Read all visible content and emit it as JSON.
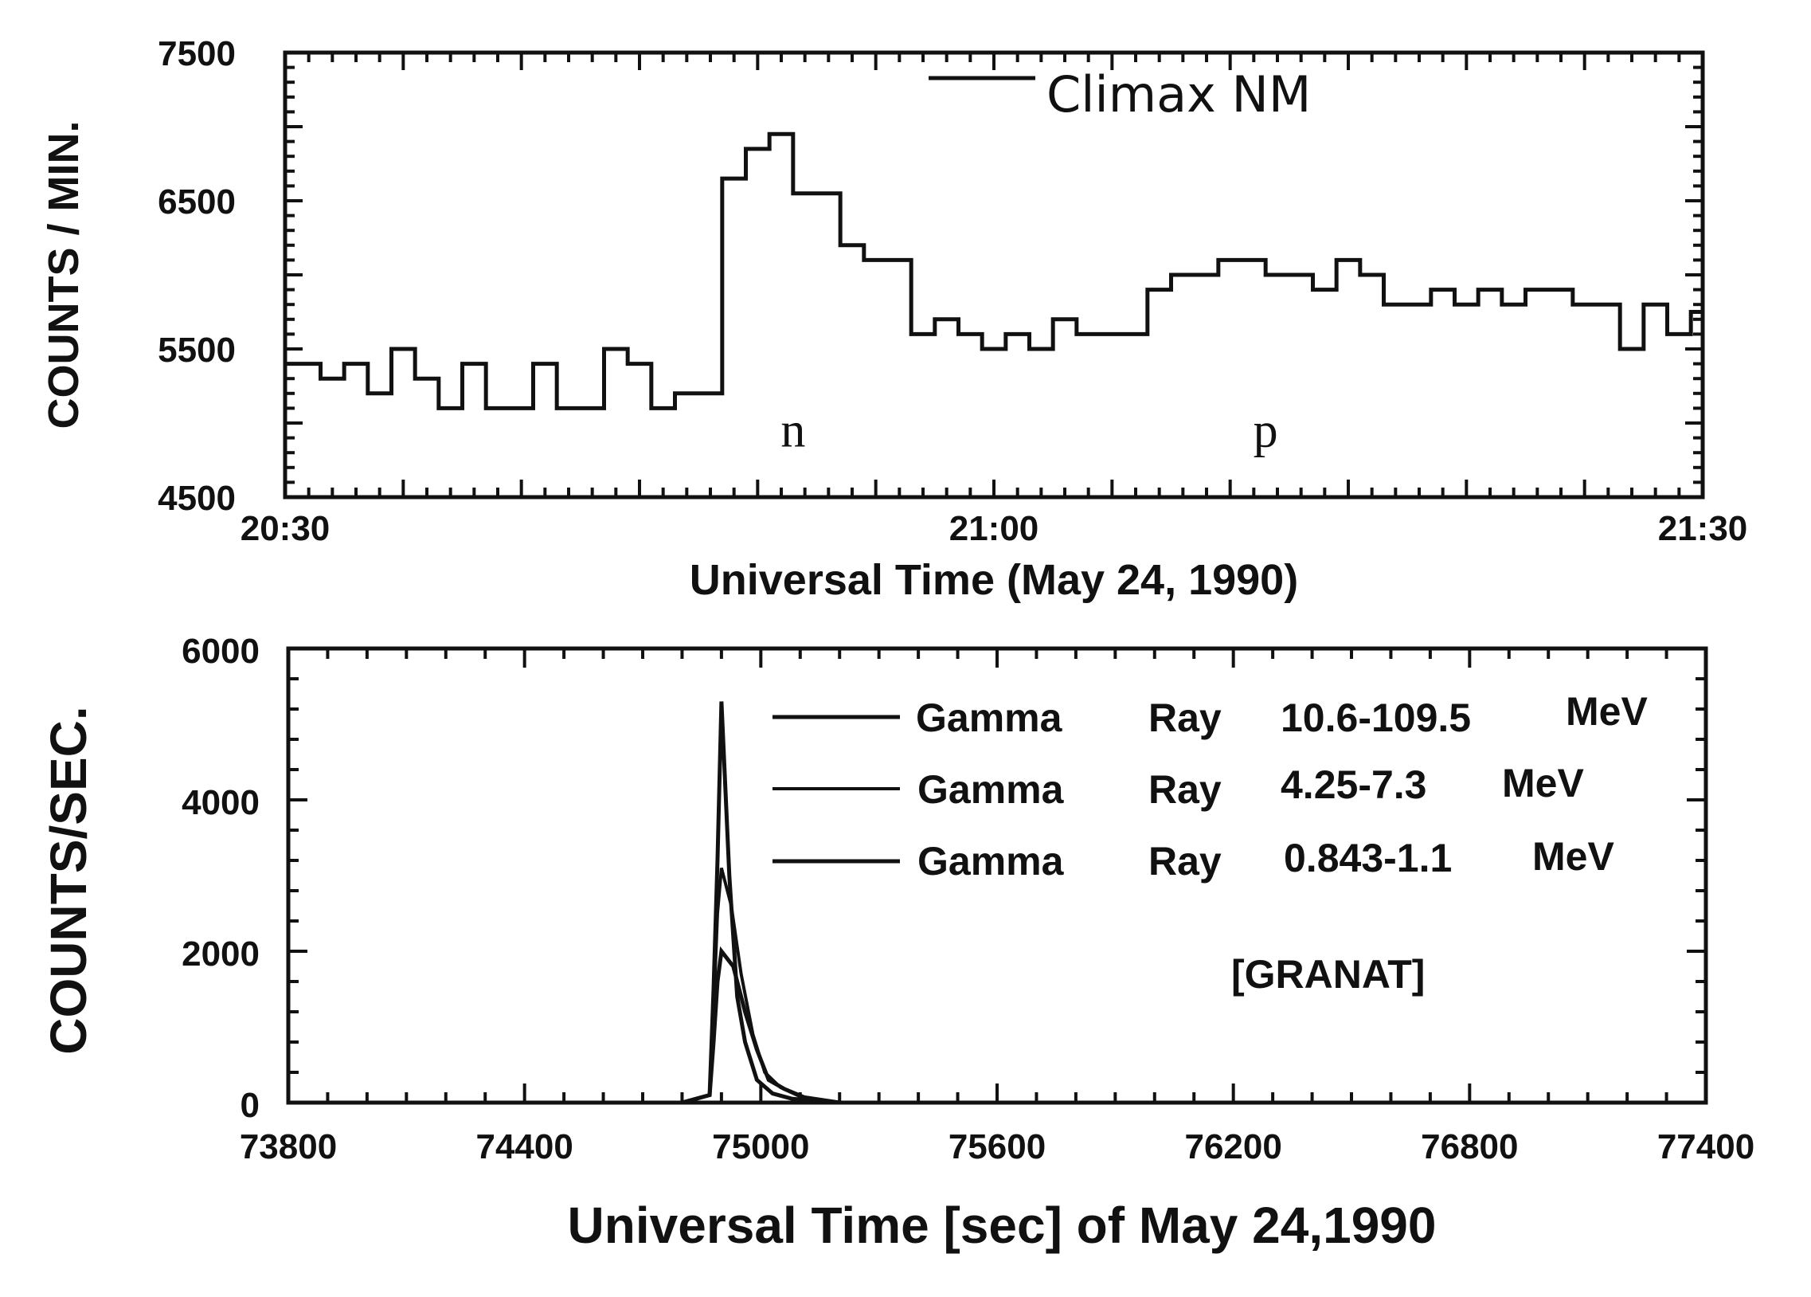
{
  "chart_data": [
    {
      "type": "line",
      "step": true,
      "ylabel": "COUNTS / MIN.",
      "xlabel": "Universal Time (May 24, 1990)",
      "xlim_minutes_after_2030": [
        0,
        60
      ],
      "ylim": [
        4500,
        7500
      ],
      "y_ticks": [
        "7500",
        "6500",
        "5500",
        "4500"
      ],
      "y_tick_values": [
        7500,
        6500,
        5500,
        4500
      ],
      "x_ticks": [
        "20:30",
        "21:00",
        "21:30"
      ],
      "x_tick_values": [
        0,
        30,
        60
      ],
      "legend": {
        "label": "Climax  NM",
        "placement": "top-right"
      },
      "annotations": [
        {
          "text": "n",
          "x": 21.5,
          "y": 4950
        },
        {
          "text": "p",
          "x": 41.5,
          "y": 4950
        }
      ],
      "series": [
        {
          "name": "Climax  NM",
          "x": [
            0,
            1.5,
            2.5,
            3.5,
            4.5,
            5.5,
            6.5,
            7.5,
            8.5,
            9.5,
            10.5,
            11.5,
            12.5,
            13.5,
            14.5,
            15.5,
            16.5,
            17.5,
            18.5,
            19.5,
            20.5,
            21.5,
            22.5,
            23.5,
            24.5,
            25.5,
            26.5,
            27.5,
            28.5,
            29.5,
            30.5,
            31.5,
            32.5,
            33.5,
            34.5,
            35.5,
            36.5,
            37.5,
            38.5,
            39.5,
            40.5,
            41.5,
            42.5,
            43.5,
            44.5,
            45.5,
            46.5,
            47.5,
            48.5,
            49.5,
            50.5,
            51.5,
            52.5,
            53.5,
            54.5,
            55.5,
            56.5,
            57.5,
            58.5,
            59.5,
            60
          ],
          "y": [
            5400,
            5300,
            5400,
            5200,
            5500,
            5300,
            5100,
            5400,
            5100,
            5100,
            5400,
            5100,
            5100,
            5500,
            5400,
            5100,
            5200,
            5200,
            6650,
            6850,
            6950,
            6550,
            6550,
            6200,
            6100,
            6100,
            5600,
            5700,
            5600,
            5500,
            5600,
            5500,
            5700,
            5600,
            5600,
            5600,
            5900,
            6000,
            6000,
            6100,
            6100,
            6000,
            6000,
            5900,
            6100,
            6000,
            5800,
            5800,
            5900,
            5800,
            5900,
            5800,
            5900,
            5900,
            5800,
            5800,
            5500,
            5800,
            5600,
            5750,
            5750
          ]
        }
      ]
    },
    {
      "type": "line",
      "ylabel": "COUNTS/SEC.",
      "xlabel": "Universal Time [sec] of May 24,1990",
      "xlim": [
        73800,
        77400
      ],
      "ylim": [
        0,
        6000
      ],
      "x_ticks": [
        "73800",
        "74400",
        "75000",
        "75600",
        "76200",
        "76800",
        "77400"
      ],
      "x_tick_values": [
        73800,
        74400,
        75000,
        75600,
        76200,
        76800,
        77400
      ],
      "y_ticks": [
        "6000",
        "4000",
        "2000",
        "0"
      ],
      "y_tick_values": [
        6000,
        4000,
        2000,
        0
      ],
      "legend": {
        "placement": "top-right"
      },
      "annotation": "[GRANAT]",
      "series": [
        {
          "name_parts": [
            "Gamma",
            "Ray",
            "10.6-109.5",
            "MeV"
          ],
          "x": [
            73800,
            74800,
            74870,
            74880,
            74890,
            74900,
            74920,
            74940,
            74960,
            74990,
            75030,
            75080,
            75200,
            77400
          ],
          "y": [
            0,
            0,
            100,
            1500,
            3200,
            5300,
            3000,
            1400,
            800,
            300,
            120,
            50,
            0,
            0
          ]
        },
        {
          "name_parts": [
            "Gamma",
            "Ray",
            "4.25-7.3",
            "MeV"
          ],
          "x": [
            73800,
            74800,
            74870,
            74880,
            74890,
            74900,
            74925,
            74950,
            74980,
            75010,
            75050,
            75100,
            75200,
            77400
          ],
          "y": [
            0,
            0,
            100,
            1200,
            2500,
            3100,
            2600,
            1700,
            900,
            400,
            200,
            80,
            0,
            0
          ]
        },
        {
          "name_parts": [
            "Gamma",
            "Ray",
            "0.843-1.1",
            "MeV"
          ],
          "x": [
            73800,
            74800,
            74870,
            74880,
            74890,
            74900,
            74930,
            74960,
            74990,
            75020,
            75060,
            75110,
            75200,
            77400
          ],
          "y": [
            0,
            0,
            100,
            800,
            1600,
            2000,
            1800,
            1200,
            700,
            300,
            180,
            70,
            0,
            0
          ]
        }
      ]
    }
  ]
}
